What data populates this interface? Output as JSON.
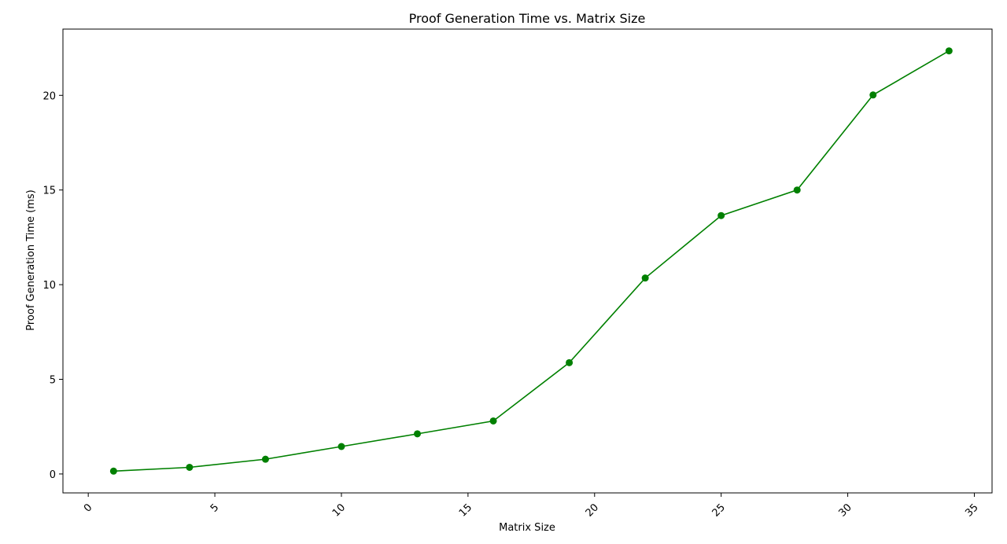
{
  "chart_data": {
    "type": "line",
    "title": "Proof Generation Time vs. Matrix Size",
    "xlabel": "Matrix Size",
    "ylabel": "Proof Generation Time (ms)",
    "xlim": [
      -1,
      35.7
    ],
    "ylim": [
      -1,
      23.5
    ],
    "xticks": [
      0,
      5,
      10,
      15,
      20,
      25,
      30,
      35
    ],
    "xtick_labels": [
      "0",
      "5",
      "10",
      "15",
      "20",
      "25",
      "30",
      "35"
    ],
    "xtick_rotation": 45,
    "yticks": [
      0,
      5,
      10,
      15,
      20
    ],
    "ytick_labels": [
      "0",
      "5",
      "10",
      "15",
      "20"
    ],
    "grid": false,
    "series": [
      {
        "color": "#008000",
        "marker": "circle",
        "x": [
          1,
          4,
          7,
          10,
          13,
          16,
          19,
          22,
          25,
          28,
          31,
          34
        ],
        "y": [
          0.15,
          0.35,
          0.78,
          1.45,
          2.12,
          2.8,
          5.88,
          10.35,
          13.65,
          15.0,
          20.02,
          22.35
        ]
      }
    ]
  }
}
